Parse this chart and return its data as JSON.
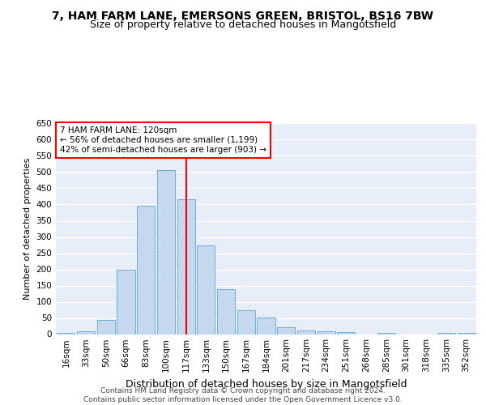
{
  "title_line1": "7, HAM FARM LANE, EMERSONS GREEN, BRISTOL, BS16 7BW",
  "title_line2": "Size of property relative to detached houses in Mangotsfield",
  "xlabel": "Distribution of detached houses by size in Mangotsfield",
  "ylabel": "Number of detached properties",
  "categories": [
    "16sqm",
    "33sqm",
    "50sqm",
    "66sqm",
    "83sqm",
    "100sqm",
    "117sqm",
    "133sqm",
    "150sqm",
    "167sqm",
    "184sqm",
    "201sqm",
    "217sqm",
    "234sqm",
    "251sqm",
    "268sqm",
    "285sqm",
    "301sqm",
    "318sqm",
    "335sqm",
    "352sqm"
  ],
  "bar_values": [
    5,
    10,
    45,
    200,
    395,
    505,
    415,
    275,
    138,
    75,
    52,
    22,
    12,
    8,
    7,
    0,
    5,
    0,
    0,
    5,
    3
  ],
  "bar_color": "#c5d8ee",
  "bar_edge_color": "#6baed6",
  "background_color": "#e8eef8",
  "grid_color": "#ffffff",
  "marker_bin_index": 6,
  "annotation_line1": "7 HAM FARM LANE: 120sqm",
  "annotation_line2": "← 56% of detached houses are smaller (1,199)",
  "annotation_line3": "42% of semi-detached houses are larger (903) →",
  "annotation_box_color": "#ff0000",
  "ylim": [
    0,
    650
  ],
  "yticks": [
    0,
    50,
    100,
    150,
    200,
    250,
    300,
    350,
    400,
    450,
    500,
    550,
    600,
    650
  ],
  "footer_line1": "Contains HM Land Registry data © Crown copyright and database right 2024.",
  "footer_line2": "Contains public sector information licensed under the Open Government Licence v3.0.",
  "title_fontsize": 10,
  "subtitle_fontsize": 9,
  "axis_label_fontsize": 8,
  "tick_fontsize": 7.5,
  "annotation_fontsize": 7.5,
  "footer_fontsize": 6.5
}
